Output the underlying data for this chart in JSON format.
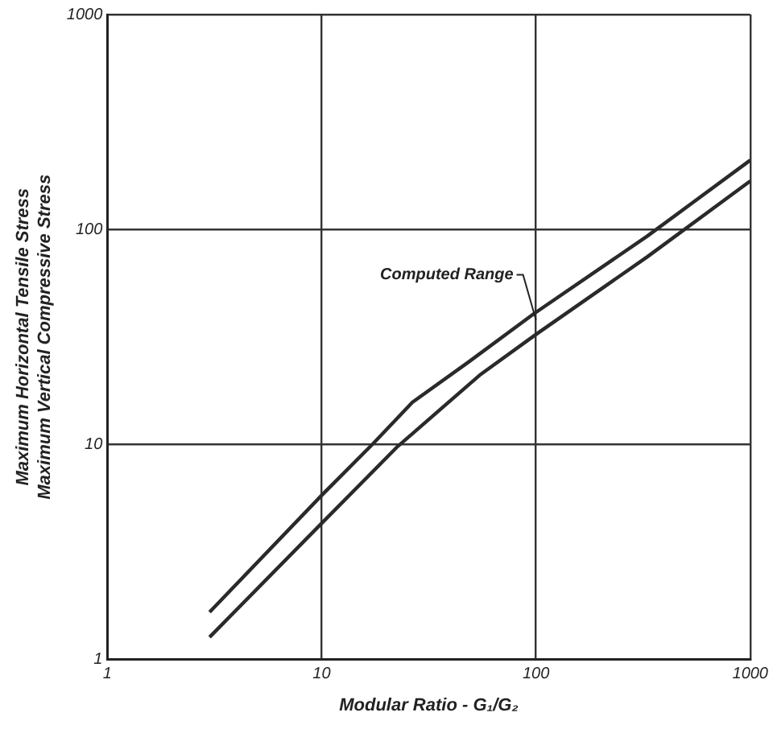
{
  "chart_data": {
    "type": "line",
    "xlabel": "Modular Ratio - G₁/G₂",
    "ylabel": "Maximum Horizontal Tensile Stress\nMaximum Vertical Compressive Stress",
    "log": "xy",
    "grid": true,
    "marker": "none",
    "line_style": "solid",
    "xlim": [
      1,
      1000
    ],
    "ylim": [
      1,
      1000
    ],
    "xticks": [
      1,
      10,
      100,
      1000
    ],
    "yticks": [
      1,
      10,
      100,
      1000
    ],
    "series": [
      {
        "color": "#2a2a2a",
        "x": [
          3,
          10,
          17.4,
          26.5,
          48.5,
          98,
          330,
          1000
        ],
        "values": [
          1.66,
          5.8,
          10.1,
          15.7,
          24.2,
          40.6,
          93,
          210
        ]
      },
      {
        "color": "#2a2a2a",
        "x": [
          3,
          10,
          22.4,
          54.6,
          100,
          330,
          1000
        ],
        "values": [
          1.27,
          4.3,
          9.7,
          21,
          32.5,
          74.5,
          168
        ]
      }
    ],
    "annotations": [
      {
        "text": "Computed Range",
        "x": 100,
        "y": 38
      }
    ]
  }
}
